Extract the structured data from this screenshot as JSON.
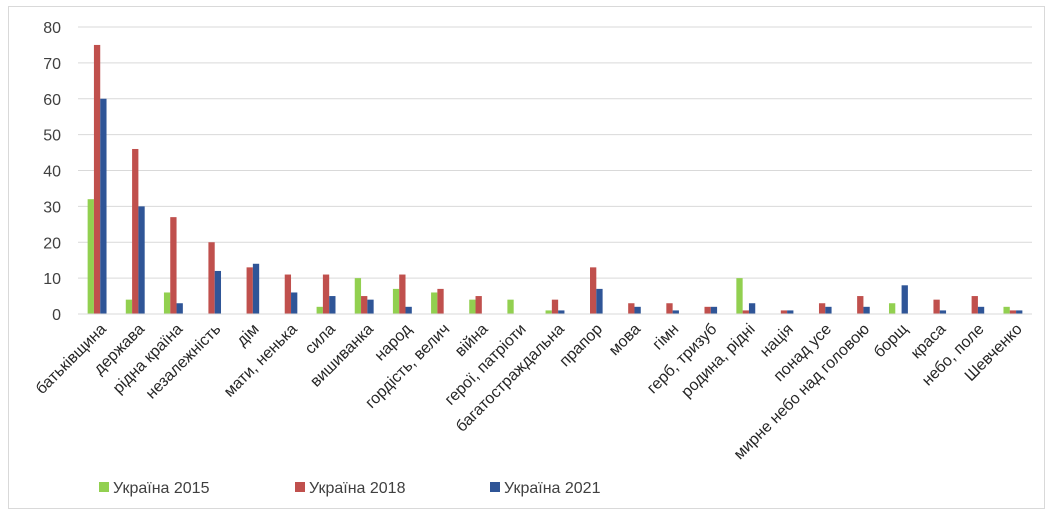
{
  "chart_data": {
    "type": "bar",
    "title": "",
    "xlabel": "",
    "ylabel": "",
    "ylim": [
      0,
      80
    ],
    "yticks": [
      0,
      10,
      20,
      30,
      40,
      50,
      60,
      70,
      80
    ],
    "grid": true,
    "legend_position": "bottom-left",
    "categories": [
      "батьківщина",
      "держава",
      "рідна країна",
      "незалежність",
      "дім",
      "мати, ненька",
      "сила",
      "вишиванка",
      "народ",
      "гордість, велич",
      "війна",
      "герої, патріоти",
      "багатостраждальна",
      "прапор",
      "мова",
      "гімн",
      "герб, тризуб",
      "родина, рідні",
      "нація",
      "понад усе",
      "мирне небо над головою",
      "борщ",
      "краса",
      "небо, поле",
      "Шевченко"
    ],
    "series": [
      {
        "name": "Україна 2015",
        "color": "#92d050",
        "values": [
          32,
          4,
          6,
          0,
          0,
          0,
          2,
          10,
          7,
          6,
          4,
          4,
          1,
          0,
          0,
          0,
          0,
          10,
          0,
          0,
          0,
          3,
          0,
          0,
          2
        ]
      },
      {
        "name": "Україна 2018",
        "color": "#c0504d",
        "values": [
          75,
          46,
          27,
          20,
          13,
          11,
          11,
          5,
          11,
          7,
          5,
          0,
          4,
          13,
          3,
          3,
          2,
          1,
          1,
          3,
          5,
          0,
          4,
          5,
          1
        ]
      },
      {
        "name": "Україна 2021",
        "color": "#2f5597",
        "values": [
          60,
          30,
          3,
          12,
          14,
          6,
          5,
          4,
          2,
          0,
          0,
          0,
          1,
          7,
          2,
          1,
          2,
          3,
          1,
          2,
          2,
          8,
          1,
          2,
          1
        ]
      }
    ]
  }
}
